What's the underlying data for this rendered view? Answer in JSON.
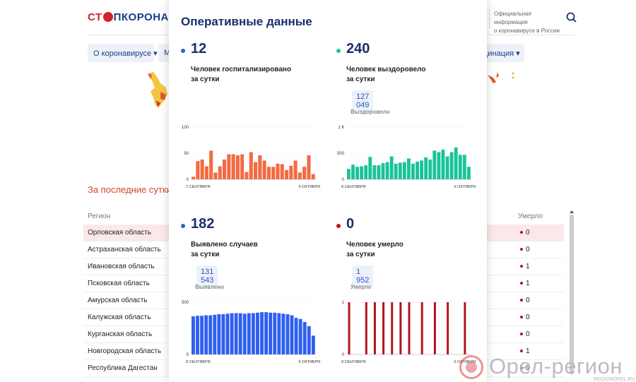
{
  "header": {
    "logo": {
      "part1": "СТ",
      "part2": "ПКОРОНАВИ"
    },
    "official_line1": "Официальная информация",
    "official_line2": "о коронавирусе в России"
  },
  "nav": {
    "item1": "О коронавирусе ▾",
    "item2": "М",
    "item3": "цинация ▾"
  },
  "section_title": "За последние сутки",
  "table": {
    "col_region": "Регион",
    "col_deaths": "Умерло",
    "rows": [
      {
        "region": "Орловская область",
        "deaths": "0"
      },
      {
        "region": "Астраханская область",
        "deaths": "0"
      },
      {
        "region": "Ивановская область",
        "deaths": "1"
      },
      {
        "region": "Псковская область",
        "deaths": "1"
      },
      {
        "region": "Амурская область",
        "deaths": "0"
      },
      {
        "region": "Калужская область",
        "deaths": "0"
      },
      {
        "region": "Курганская область",
        "deaths": "0"
      },
      {
        "region": "Новгородская область",
        "deaths": "1"
      },
      {
        "region": "Республика Дагестан",
        "deaths": "0"
      }
    ]
  },
  "panel": {
    "title": "Оперативные данные",
    "stats": [
      {
        "value": "12",
        "label1": "Человек госпитализировано",
        "label2": "за сутки",
        "dot_color": "#2f5fd1"
      },
      {
        "value": "240",
        "label1": "Человек выздоровело",
        "label2": "за сутки",
        "total": "127 049",
        "total_label": "Выздоровело",
        "dot_color": "#1ec39a"
      },
      {
        "value": "182",
        "label1": "Выявлено случаев",
        "label2": "за сутки",
        "total": "131 543",
        "total_label": "Выявлено",
        "dot_color": "#2f5fd1"
      },
      {
        "value": "0",
        "label1": "Человек умерло",
        "label2": "за сутки",
        "total": "1 952",
        "total_label": "Умерло",
        "dot_color": "#b3141c"
      }
    ]
  },
  "chart_data": [
    {
      "type": "bar",
      "color": "#f26b43",
      "y_ticks": [
        "100",
        "50",
        "0"
      ],
      "ylim": [
        0,
        100
      ],
      "x_start": "7 СЕНТЯБРЯ",
      "x_end": "6 ОКТЯБРЯ",
      "values": [
        5,
        35,
        38,
        25,
        55,
        13,
        25,
        38,
        48,
        48,
        46,
        48,
        14,
        52,
        33,
        46,
        36,
        24,
        24,
        30,
        29,
        18,
        26,
        36,
        13,
        24,
        46,
        10
      ]
    },
    {
      "type": "bar",
      "color": "#19c39a",
      "y_ticks": [
        "1 К",
        "500",
        "0"
      ],
      "ylim": [
        0,
        1000
      ],
      "x_start": "8 СЕНТЯБРЯ",
      "x_end": "6 ОКТЯБРЯ",
      "values": [
        200,
        280,
        240,
        250,
        270,
        430,
        270,
        270,
        310,
        330,
        440,
        300,
        320,
        330,
        400,
        300,
        340,
        360,
        420,
        380,
        550,
        520,
        570,
        440,
        520,
        610,
        470,
        470,
        240
      ]
    },
    {
      "type": "bar",
      "color": "#2f5ff0",
      "y_ticks": [
        "500",
        "0"
      ],
      "ylim": [
        0,
        500
      ],
      "x_start": "8 СЕНТЯБРЯ",
      "x_end": "6 ОКТЯБРЯ",
      "values": [
        365,
        370,
        370,
        375,
        375,
        380,
        385,
        385,
        390,
        395,
        395,
        395,
        390,
        395,
        395,
        400,
        405,
        405,
        400,
        400,
        395,
        390,
        385,
        375,
        350,
        340,
        310,
        270,
        180
      ]
    },
    {
      "type": "bar",
      "color": "#b3141c",
      "y_ticks": [
        "1",
        "0"
      ],
      "ylim": [
        0,
        1
      ],
      "x_start": "8 СЕНТЯБРЯ",
      "x_end": "6 ОКТЯБРЯ",
      "values": [
        1,
        0,
        0,
        0,
        1,
        0,
        1,
        0,
        1,
        0,
        1,
        0,
        1,
        0,
        1,
        0,
        0,
        1,
        0,
        0,
        1,
        0,
        0,
        1,
        0,
        0,
        0,
        1,
        0
      ]
    }
  ],
  "watermark": {
    "text": "Орел-регион",
    "url": "REGIONOREL.RU"
  }
}
